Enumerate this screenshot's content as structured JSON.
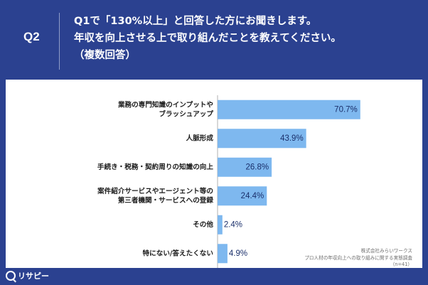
{
  "header": {
    "q_label": "Q2",
    "question_lines": [
      "Q1で「130%以上」と回答した方にお聞きします。",
      "年収を向上させる上で取り組んだことを教えてください。",
      "（複数回答）"
    ]
  },
  "source": {
    "lines": [
      "株式会社みらいワークス",
      "プロ人材の年収向上への取り組みに関する実態調査",
      "（n=41）"
    ]
  },
  "logo": {
    "text": "リサピー",
    "icon": "search-icon"
  },
  "colors": {
    "background": "#2b4190",
    "bar": "#7eb8ef",
    "panel": "#ffffff"
  },
  "chart_data": {
    "type": "bar",
    "orientation": "horizontal",
    "categories": [
      [
        "業務の専門知識のインプットや",
        "ブラッシュアップ"
      ],
      [
        "人脈形成"
      ],
      [
        "手続き・税務・契約周りの知識の向上"
      ],
      [
        "案件紹介サービスやエージェント等の",
        "第三者機関・サービスへの登録"
      ],
      [
        "その他"
      ],
      [
        "特にない/答えたくない"
      ]
    ],
    "values": [
      70.7,
      43.9,
      26.8,
      24.4,
      2.4,
      4.9
    ],
    "value_labels": [
      "70.7%",
      "43.9%",
      "26.8%",
      "24.4%",
      "2.4%",
      "4.9%"
    ],
    "xlim": [
      0,
      100
    ],
    "grid": false
  }
}
